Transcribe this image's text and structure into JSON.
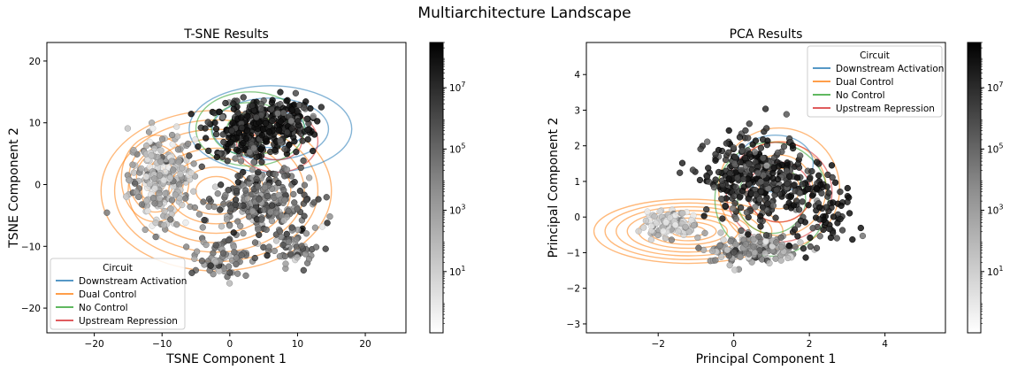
{
  "figure": {
    "suptitle": "Multiarchitecture Landscape"
  },
  "colors": {
    "Downstream Activation": "#1f77b4",
    "Dual Control": "#ff7f0e",
    "No Control": "#2ca02c",
    "Upstream Repression": "#d62728"
  },
  "chart_data": [
    {
      "type": "scatter",
      "title": "T-SNE Results",
      "xlabel": "TSNE Component 1",
      "ylabel": "TSNE Component 2",
      "xlim": [
        -27,
        26
      ],
      "ylim": [
        -24,
        23
      ],
      "xticks": [
        -20,
        -10,
        0,
        10,
        20
      ],
      "yticks": [
        -20,
        -10,
        0,
        10,
        20
      ],
      "grid": false,
      "legend": {
        "title": "Circuit",
        "placement": "lower-left",
        "entries": [
          "Downstream Activation",
          "Dual Control",
          "No Control",
          "Upstream Repression"
        ]
      },
      "clusters": [
        {
          "cx": -10,
          "cy": 1,
          "sx": 4,
          "sy": 6,
          "n": 260,
          "level": 0.25
        },
        {
          "cx": 2,
          "cy": 9,
          "sx": 4.5,
          "sy": 4,
          "n": 240,
          "level": 0.92
        },
        {
          "cx": 8,
          "cy": 10,
          "sx": 3.5,
          "sy": 3.5,
          "n": 160,
          "level": 0.9
        },
        {
          "cx": 5,
          "cy": -3,
          "sx": 6,
          "sy": 5,
          "n": 260,
          "level": 0.55
        },
        {
          "cx": -1,
          "cy": -12,
          "sx": 3,
          "sy": 2.5,
          "n": 80,
          "level": 0.45
        },
        {
          "cx": 9,
          "cy": -10,
          "sx": 3,
          "sy": 2.5,
          "n": 60,
          "level": 0.45
        }
      ],
      "contours": [
        {
          "circuit": "Dual Control",
          "cx": -2,
          "cy": -1,
          "rx": 17,
          "ry": 13,
          "count": 8
        },
        {
          "circuit": "Dual Control",
          "cx": -11,
          "cy": 1,
          "rx": 5,
          "ry": 7,
          "count": 4
        },
        {
          "circuit": "Downstream Activation",
          "cx": 6,
          "cy": 9,
          "rx": 12,
          "ry": 7,
          "count": 3
        },
        {
          "circuit": "No Control",
          "cx": 3,
          "cy": 9,
          "rx": 8,
          "ry": 6,
          "count": 3
        },
        {
          "circuit": "Upstream Repression",
          "cx": 7,
          "cy": 7,
          "rx": 6,
          "ry": 5,
          "count": 2
        }
      ]
    },
    {
      "type": "scatter",
      "title": "PCA Results",
      "xlabel": "Principal Component 1",
      "ylabel": "Principal Component 2",
      "xlim": [
        -3.9,
        5.6
      ],
      "ylim": [
        -3.25,
        4.9
      ],
      "xticks": [
        -2,
        0,
        2,
        4
      ],
      "yticks": [
        -3,
        -2,
        -1,
        0,
        1,
        2,
        3,
        4
      ],
      "grid": false,
      "legend": {
        "title": "Circuit",
        "placement": "upper-right",
        "entries": [
          "Downstream Activation",
          "Dual Control",
          "No Control",
          "Upstream Repression"
        ]
      },
      "clusters": [
        {
          "cx": -1.6,
          "cy": -0.2,
          "sx": 0.6,
          "sy": 0.3,
          "n": 120,
          "level": 0.15
        },
        {
          "cx": 0.5,
          "cy": -0.9,
          "sx": 1.0,
          "sy": 0.35,
          "n": 180,
          "level": 0.4
        },
        {
          "cx": 0.6,
          "cy": 1.1,
          "sx": 1.1,
          "sy": 0.9,
          "n": 360,
          "level": 0.85
        },
        {
          "cx": 2.3,
          "cy": 0.3,
          "sx": 0.8,
          "sy": 1.0,
          "n": 100,
          "level": 0.9
        }
      ],
      "contours": [
        {
          "circuit": "Dual Control",
          "cx": -1.2,
          "cy": -0.4,
          "rx": 2.5,
          "ry": 0.9,
          "count": 8
        },
        {
          "circuit": "Dual Control",
          "cx": 1.2,
          "cy": 0.8,
          "rx": 1.6,
          "ry": 1.7,
          "count": 4
        },
        {
          "circuit": "No Control",
          "cx": 1.0,
          "cy": 0.5,
          "rx": 1.5,
          "ry": 1.6,
          "count": 2
        },
        {
          "circuit": "Upstream Repression",
          "cx": 1.2,
          "cy": 0.7,
          "rx": 1.4,
          "ry": 1.4,
          "count": 2
        },
        {
          "circuit": "Downstream Activation",
          "cx": 1.1,
          "cy": 1.5,
          "rx": 1.0,
          "ry": 0.8,
          "count": 1
        }
      ]
    }
  ],
  "colorbars": [
    {
      "scale": "log",
      "range": [
        0.1,
        300000000
      ],
      "labels": [
        "10^1",
        "10^3",
        "10^5",
        "10^7"
      ]
    },
    {
      "scale": "log",
      "range": [
        0.1,
        300000000
      ],
      "labels": [
        "10^1",
        "10^3",
        "10^5",
        "10^7"
      ]
    }
  ]
}
